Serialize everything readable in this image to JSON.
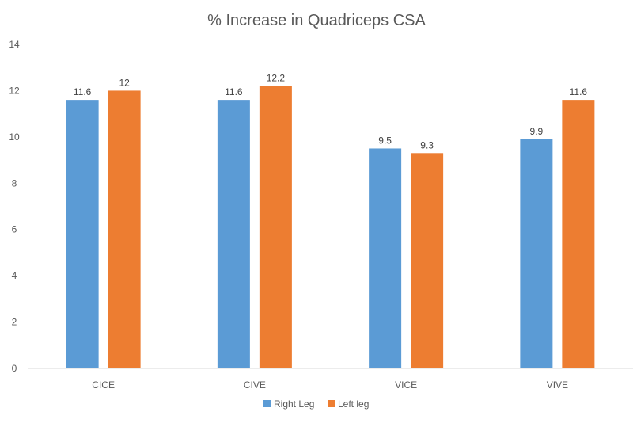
{
  "chart_data": {
    "type": "bar",
    "title": "% Increase in Quadriceps CSA",
    "xlabel": "",
    "ylabel": "",
    "categories": [
      "CICE",
      "CIVE",
      "VICE",
      "VIVE"
    ],
    "series": [
      {
        "name": "Right Leg",
        "color": "#5b9bd5",
        "values": [
          11.6,
          11.6,
          9.5,
          9.9
        ],
        "labels": [
          "11.6",
          "11.6",
          "9.5",
          "9.9"
        ]
      },
      {
        "name": "Left leg",
        "color": "#ed7d31",
        "values": [
          12,
          12.2,
          9.3,
          11.6
        ],
        "labels": [
          "12",
          "12.2",
          "9.3",
          "11.6"
        ]
      }
    ],
    "ylim": [
      0,
      14
    ],
    "yticks": [
      "0",
      "2",
      "4",
      "6",
      "8",
      "10",
      "12",
      "14"
    ],
    "grid": false,
    "legend": "bottom"
  }
}
